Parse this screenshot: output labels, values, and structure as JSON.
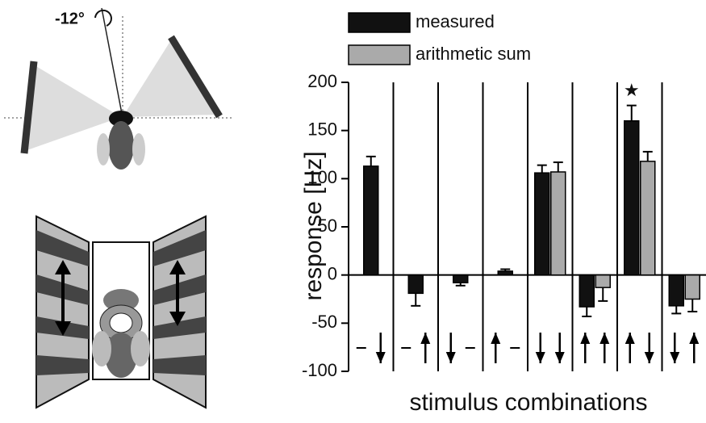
{
  "illustration": {
    "angle_label": "-12°"
  },
  "chart_data": {
    "type": "bar",
    "ylabel": "response [Hz]",
    "xlabel": "stimulus combinations",
    "categories": [
      null,
      null,
      null,
      null,
      null,
      null,
      null,
      null
    ],
    "series": [
      {
        "name": "measured",
        "color": "#111111",
        "values": [
          113,
          -19,
          -8,
          4,
          106,
          -33,
          160,
          -32
        ],
        "errors": [
          10,
          13,
          3,
          2,
          8,
          10,
          16,
          8
        ]
      },
      {
        "name": "arithmetic sum",
        "color": "#aaaaaa",
        "values": [
          null,
          null,
          null,
          null,
          107,
          -13,
          118,
          -25
        ],
        "errors": [
          null,
          null,
          null,
          null,
          10,
          14,
          10,
          13
        ]
      }
    ],
    "ylim": [
      -100,
      200
    ],
    "yticks": [
      -100,
      -50,
      0,
      50,
      100,
      150,
      200
    ],
    "annotations": [
      {
        "text": "★",
        "category": 6
      }
    ]
  }
}
